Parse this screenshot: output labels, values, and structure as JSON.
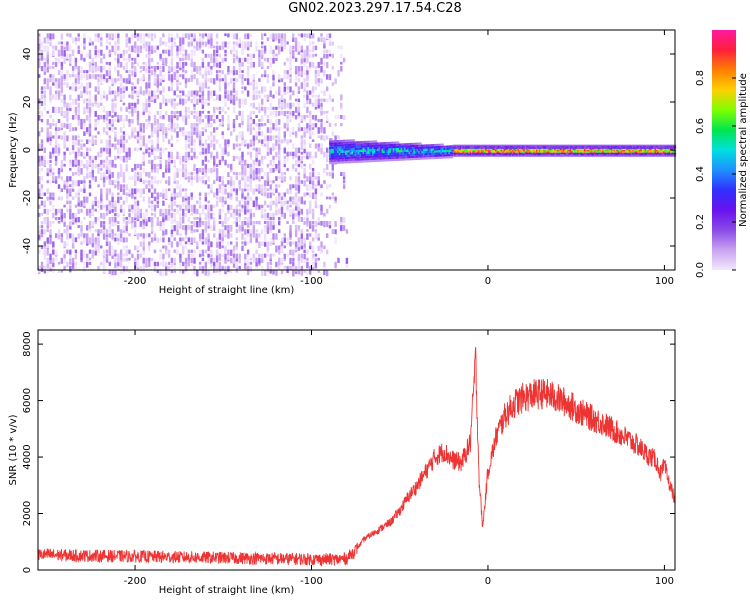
{
  "figure_title": "GN02.2023.297.17.54.C28",
  "colors": {
    "snr_line": "#ee3333",
    "colormap": [
      "#f4e8ff",
      "#c9a2f0",
      "#8a4ae8",
      "#6a11ee",
      "#3030ff",
      "#1e90ff",
      "#00e0e0",
      "#00e64d",
      "#7fff00",
      "#ffd000",
      "#ff7f00",
      "#ff1e3c",
      "#ff1aa0"
    ]
  },
  "chart_data": [
    {
      "type": "heatmap",
      "title": "",
      "xlabel": "Height of straight line (km)",
      "ylabel": "Frequency (Hz)",
      "xlim": [
        -255,
        106
      ],
      "ylim": [
        -50,
        50
      ],
      "xticks": [
        -200,
        -100,
        0,
        100
      ],
      "yticks": [
        -40,
        -20,
        0,
        20,
        40
      ],
      "colorbar": {
        "label": "Normalized spectral amplitude",
        "range": [
          0,
          1
        ],
        "ticks": [
          0.0,
          0.2,
          0.4,
          0.6,
          0.8
        ]
      },
      "regions": [
        {
          "x": [
            -255,
            -80
          ],
          "freq": [
            -50,
            50
          ],
          "amplitude": [
            0.0,
            0.15
          ]
        },
        {
          "x": [
            -90,
            -20
          ],
          "freq": [
            -5,
            5
          ],
          "amplitude": [
            0.1,
            0.55
          ]
        },
        {
          "x": [
            -20,
            106
          ],
          "freq": [
            -1,
            1
          ],
          "amplitude": [
            0.6,
            0.95
          ]
        }
      ],
      "grid": false
    },
    {
      "type": "line",
      "title": "",
      "xlabel": "Height of straight line (km)",
      "ylabel": "SNR (10 * v/v)",
      "xlim": [
        -255,
        106
      ],
      "ylim": [
        0,
        8500
      ],
      "xticks": [
        -200,
        -100,
        0,
        100
      ],
      "yticks": [
        0,
        2000,
        4000,
        6000,
        8000
      ],
      "series": [
        {
          "x": [
            -255,
            -240,
            -220,
            -200,
            -180,
            -160,
            -140,
            -120,
            -100,
            -85,
            -80,
            -75,
            -70,
            -65,
            -60,
            -55,
            -50,
            -45,
            -40,
            -35,
            -30,
            -25,
            -20,
            -15,
            -10,
            -7,
            -5,
            -3,
            0,
            5,
            10,
            15,
            20,
            25,
            30,
            35,
            40,
            45,
            50,
            55,
            60,
            65,
            70,
            75,
            80,
            85,
            90,
            95,
            98,
            100,
            102,
            106
          ],
          "y": [
            550,
            520,
            500,
            480,
            460,
            440,
            420,
            400,
            380,
            370,
            420,
            700,
            1100,
            1300,
            1500,
            1700,
            2100,
            2600,
            3000,
            3500,
            4000,
            4200,
            3900,
            3800,
            4500,
            7500,
            3200,
            1500,
            3500,
            4800,
            5500,
            5900,
            6100,
            6200,
            6250,
            6200,
            6050,
            5900,
            5700,
            5500,
            5350,
            5200,
            5000,
            4800,
            4600,
            4400,
            4100,
            3900,
            3400,
            3700,
            3200,
            2500
          ]
        }
      ],
      "grid": false
    }
  ]
}
